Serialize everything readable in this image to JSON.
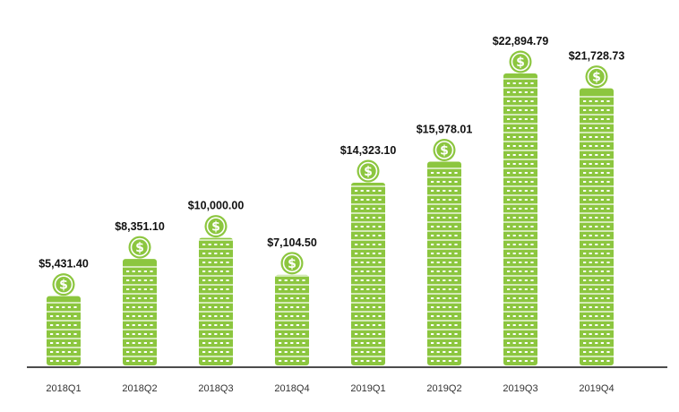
{
  "chart_data": {
    "type": "bar",
    "categories": [
      "2018Q1",
      "2018Q2",
      "2018Q3",
      "2018Q4",
      "2019Q1",
      "2019Q2",
      "2019Q3",
      "2019Q4"
    ],
    "values": [
      5431.4,
      8351.1,
      10000.0,
      7104.5,
      14323.1,
      15978.01,
      22894.79,
      21728.73
    ],
    "value_labels": [
      "$5,431.40",
      "$8,351.10",
      "$10,000.00",
      "$7,104.50",
      "$14,323.10",
      "$15,978.01",
      "$22,894.79",
      "$21,728.73"
    ],
    "title": "",
    "xlabel": "",
    "ylabel": "",
    "ylim": [
      0,
      25000
    ],
    "grid": false,
    "legend": "none",
    "mark_style": "stacked-coins-with-dollar-icon",
    "colors": {
      "bar": "#8cc63f",
      "bar_dash": "#ffffff",
      "axis": "#111111",
      "text": "#111111"
    }
  }
}
